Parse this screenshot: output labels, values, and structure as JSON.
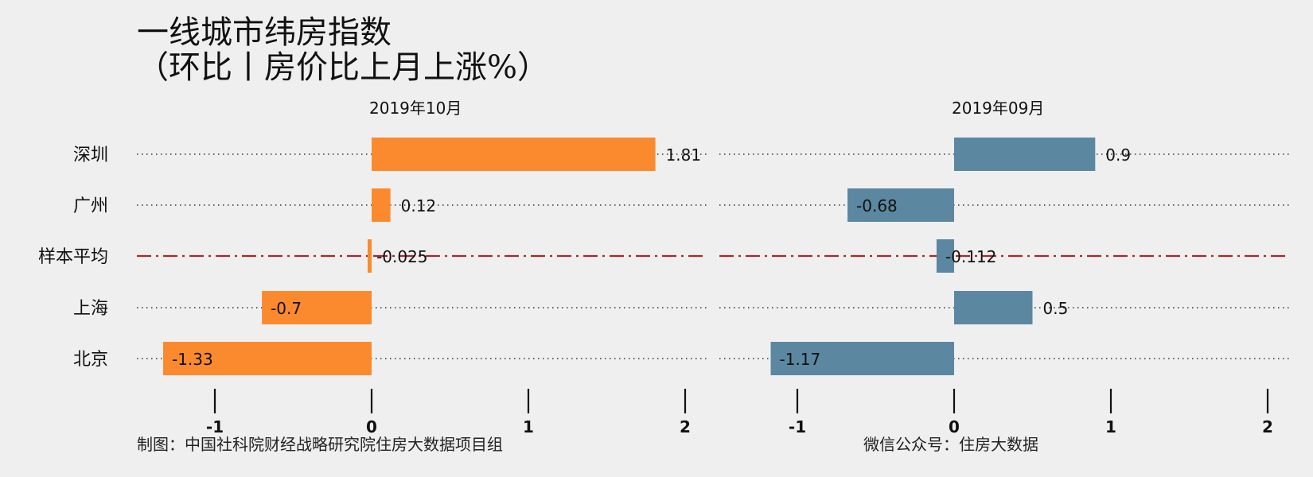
{
  "title_line1": "一线城市纬房指数",
  "title_line2": "（环比丨房价比上月上涨%）",
  "footer_left": "制图：中国社科院财经战略研究院住房大数据项目组",
  "footer_right": "微信公众号：住房大数据",
  "colors": {
    "background": "#efefef",
    "oct_bar": "#fb8a2e",
    "sep_bar": "#5b87a0",
    "average_line": "#a52a2a",
    "dotted_line": "#333333"
  },
  "chart_data": [
    {
      "type": "bar",
      "orientation": "horizontal",
      "panel_title": "2019年10月",
      "categories": [
        "深圳",
        "广州",
        "样本平均",
        "上海",
        "北京"
      ],
      "values": [
        1.81,
        0.12,
        -0.025,
        -0.7,
        -1.33
      ],
      "value_labels": [
        "1.81",
        "0.12",
        "-0.025",
        "-0.7",
        "-1.33"
      ],
      "xlim": [
        -1.5,
        2.1
      ],
      "xticks": [
        "-1",
        "0",
        "1",
        "2"
      ],
      "xtick_values": [
        -1,
        0,
        1,
        2
      ]
    },
    {
      "type": "bar",
      "orientation": "horizontal",
      "panel_title": "2019年09月",
      "categories": [
        "深圳",
        "广州",
        "样本平均",
        "上海",
        "北京"
      ],
      "values": [
        0.9,
        -0.68,
        -0.112,
        0.5,
        -1.17
      ],
      "value_labels": [
        "0.9",
        "-0.68",
        "-0.112",
        "0.5",
        "-1.17"
      ],
      "xlim": [
        -1.5,
        2.1
      ],
      "xticks": [
        "-1",
        "0",
        "1",
        "2"
      ],
      "xtick_values": [
        -1,
        0,
        1,
        2
      ]
    }
  ]
}
